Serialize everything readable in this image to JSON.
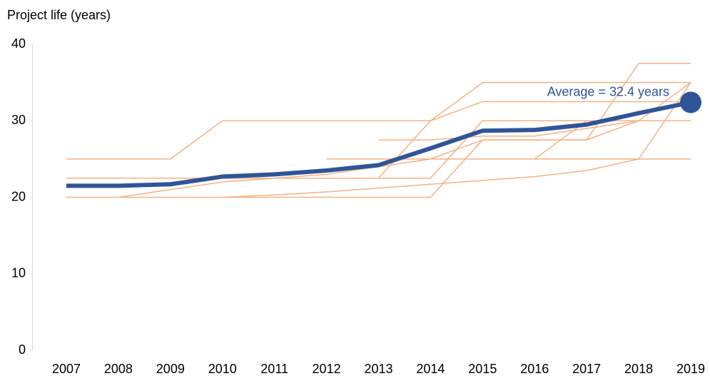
{
  "chart_data": {
    "type": "line",
    "ylabel": "Project life (years)",
    "annotation": "Average = 32.4 years",
    "categories": [
      "2007",
      "2008",
      "2009",
      "2010",
      "2011",
      "2012",
      "2013",
      "2014",
      "2015",
      "2016",
      "2017",
      "2018",
      "2019"
    ],
    "ylim": [
      0,
      40
    ],
    "yticks": [
      0,
      10,
      20,
      30,
      40
    ],
    "series": [
      {
        "color": "#F4B183",
        "values": [
          25,
          25,
          25,
          30,
          30,
          30,
          30,
          30,
          32.5,
          32.5,
          32.5,
          32.5,
          32.5
        ]
      },
      {
        "color": "#F4B183",
        "values": [
          22.5,
          22.5,
          22.5,
          22.5,
          22.5,
          22.5,
          22.5,
          22.5,
          30,
          30,
          30,
          30,
          30
        ]
      },
      {
        "color": "#F4B183",
        "values": [
          20,
          20,
          20,
          20,
          20,
          20,
          20,
          20,
          27.5,
          27.5,
          27.5,
          30,
          30
        ]
      },
      {
        "color": "#F4B183",
        "values": [
          null,
          20,
          21,
          22,
          22.5,
          23,
          24,
          25,
          27.5,
          27.5,
          27.5,
          30,
          null
        ]
      },
      {
        "color": "#F4B183",
        "values": [
          null,
          null,
          null,
          20,
          20.3,
          20.7,
          21.2,
          21.7,
          22.2,
          22.7,
          23.5,
          25,
          35
        ]
      },
      {
        "color": "#F4B183",
        "values": [
          null,
          null,
          null,
          null,
          null,
          25,
          25,
          25,
          25,
          25,
          25,
          25,
          25
        ]
      },
      {
        "color": "#F4B183",
        "values": [
          null,
          null,
          null,
          null,
          null,
          null,
          27.5,
          27.5,
          28,
          28,
          29,
          30,
          30
        ]
      },
      {
        "color": "#F4B183",
        "values": [
          null,
          null,
          null,
          null,
          null,
          null,
          22.5,
          30,
          35,
          35,
          35,
          35,
          35
        ]
      },
      {
        "color": "#F4B183",
        "values": [
          null,
          null,
          null,
          null,
          null,
          null,
          null,
          null,
          null,
          25,
          30,
          30,
          35
        ]
      },
      {
        "color": "#F4B183",
        "values": [
          null,
          null,
          null,
          null,
          null,
          null,
          null,
          null,
          null,
          null,
          27.5,
          37.5,
          37.5
        ]
      },
      {
        "color": "#2F5597",
        "values": [
          21.5,
          21.5,
          21.7,
          22.7,
          23.0,
          23.5,
          24.2,
          26.4,
          28.7,
          28.8,
          29.5,
          31.0,
          32.4
        ]
      }
    ]
  }
}
